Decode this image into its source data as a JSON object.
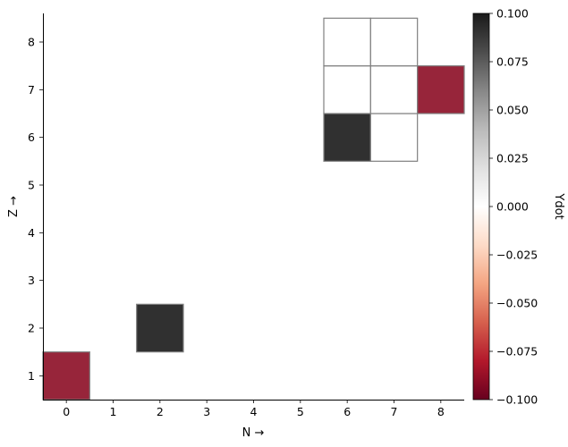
{
  "chart_data": {
    "type": "heatmap",
    "title": "",
    "xlabel": "N →",
    "ylabel": "Z →",
    "x_ticks": [
      "0",
      "1",
      "2",
      "3",
      "4",
      "5",
      "6",
      "7",
      "8"
    ],
    "y_ticks": [
      "1",
      "2",
      "3",
      "4",
      "5",
      "6",
      "7",
      "8"
    ],
    "xlim": [
      -0.5,
      8.5
    ],
    "ylim": [
      0.5,
      8.6
    ],
    "cells": [
      {
        "n": 0,
        "z": 1,
        "value": -0.09
      },
      {
        "n": 2,
        "z": 2,
        "value": 0.1
      },
      {
        "n": 6,
        "z": 6,
        "value": 0.1
      },
      {
        "n": 7,
        "z": 6,
        "value": 0.0
      },
      {
        "n": 6,
        "z": 7,
        "value": 0.0
      },
      {
        "n": 7,
        "z": 7,
        "value": 0.0
      },
      {
        "n": 8,
        "z": 7,
        "value": -0.09
      },
      {
        "n": 6,
        "z": 8,
        "value": 0.0
      },
      {
        "n": 7,
        "z": 8,
        "value": 0.0
      }
    ],
    "colorbar": {
      "label": "Ydot",
      "colormap": "RdGy",
      "range": [
        -0.1,
        0.1
      ],
      "ticks": [
        "−0.100",
        "−0.075",
        "−0.050",
        "−0.025",
        "0.000",
        "0.025",
        "0.050",
        "0.075",
        "0.100"
      ]
    },
    "grid": false,
    "colors": {
      "high": "#303030",
      "mid": "#ffffff",
      "low": "#8b0d24",
      "cell_edge": "#808080"
    }
  }
}
